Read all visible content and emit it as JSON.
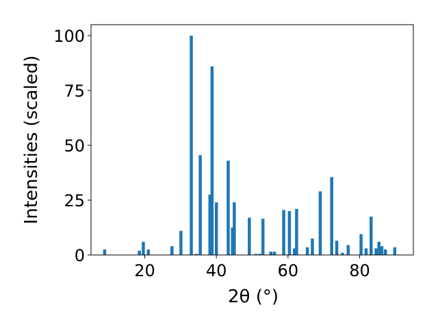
{
  "chart_data": {
    "type": "bar",
    "xlabel": "2θ (°)",
    "ylabel": "Intensities (scaled)",
    "xlim": [
      5,
      95
    ],
    "ylim": [
      0,
      105
    ],
    "xticks": [
      "20",
      "40",
      "60",
      "80"
    ],
    "yticks": [
      "0",
      "25",
      "50",
      "75",
      "100"
    ],
    "bar_color": "#1f77b4",
    "grid": false,
    "series": [
      {
        "x": [
          8.8,
          18.5,
          19.6,
          21.0,
          27.6,
          30.1,
          33.0,
          34.4,
          35.5,
          38.2,
          38.8,
          40.0,
          43.3,
          44.5,
          45.0,
          49.2,
          51.0,
          52.1,
          53.0,
          55.2,
          56.2,
          58.8,
          60.4,
          61.8,
          62.4,
          65.4,
          66.8,
          69.0,
          72.2,
          73.6,
          75.2,
          76.8,
          80.4,
          81.8,
          83.2,
          84.6,
          85.4,
          86.2,
          87.2,
          89.8
        ],
        "values": [
          2.5,
          2.0,
          6.0,
          2.5,
          4.0,
          11.0,
          100.0,
          0.5,
          45.5,
          27.5,
          86.0,
          24.0,
          43.0,
          12.5,
          24.0,
          17.0,
          0.5,
          0.5,
          16.5,
          1.5,
          1.5,
          20.5,
          20.0,
          3.0,
          21.0,
          3.5,
          7.5,
          29.0,
          35.5,
          6.5,
          1.0,
          4.5,
          9.5,
          3.0,
          17.5,
          3.0,
          6.0,
          4.0,
          2.5,
          3.5
        ]
      }
    ]
  }
}
